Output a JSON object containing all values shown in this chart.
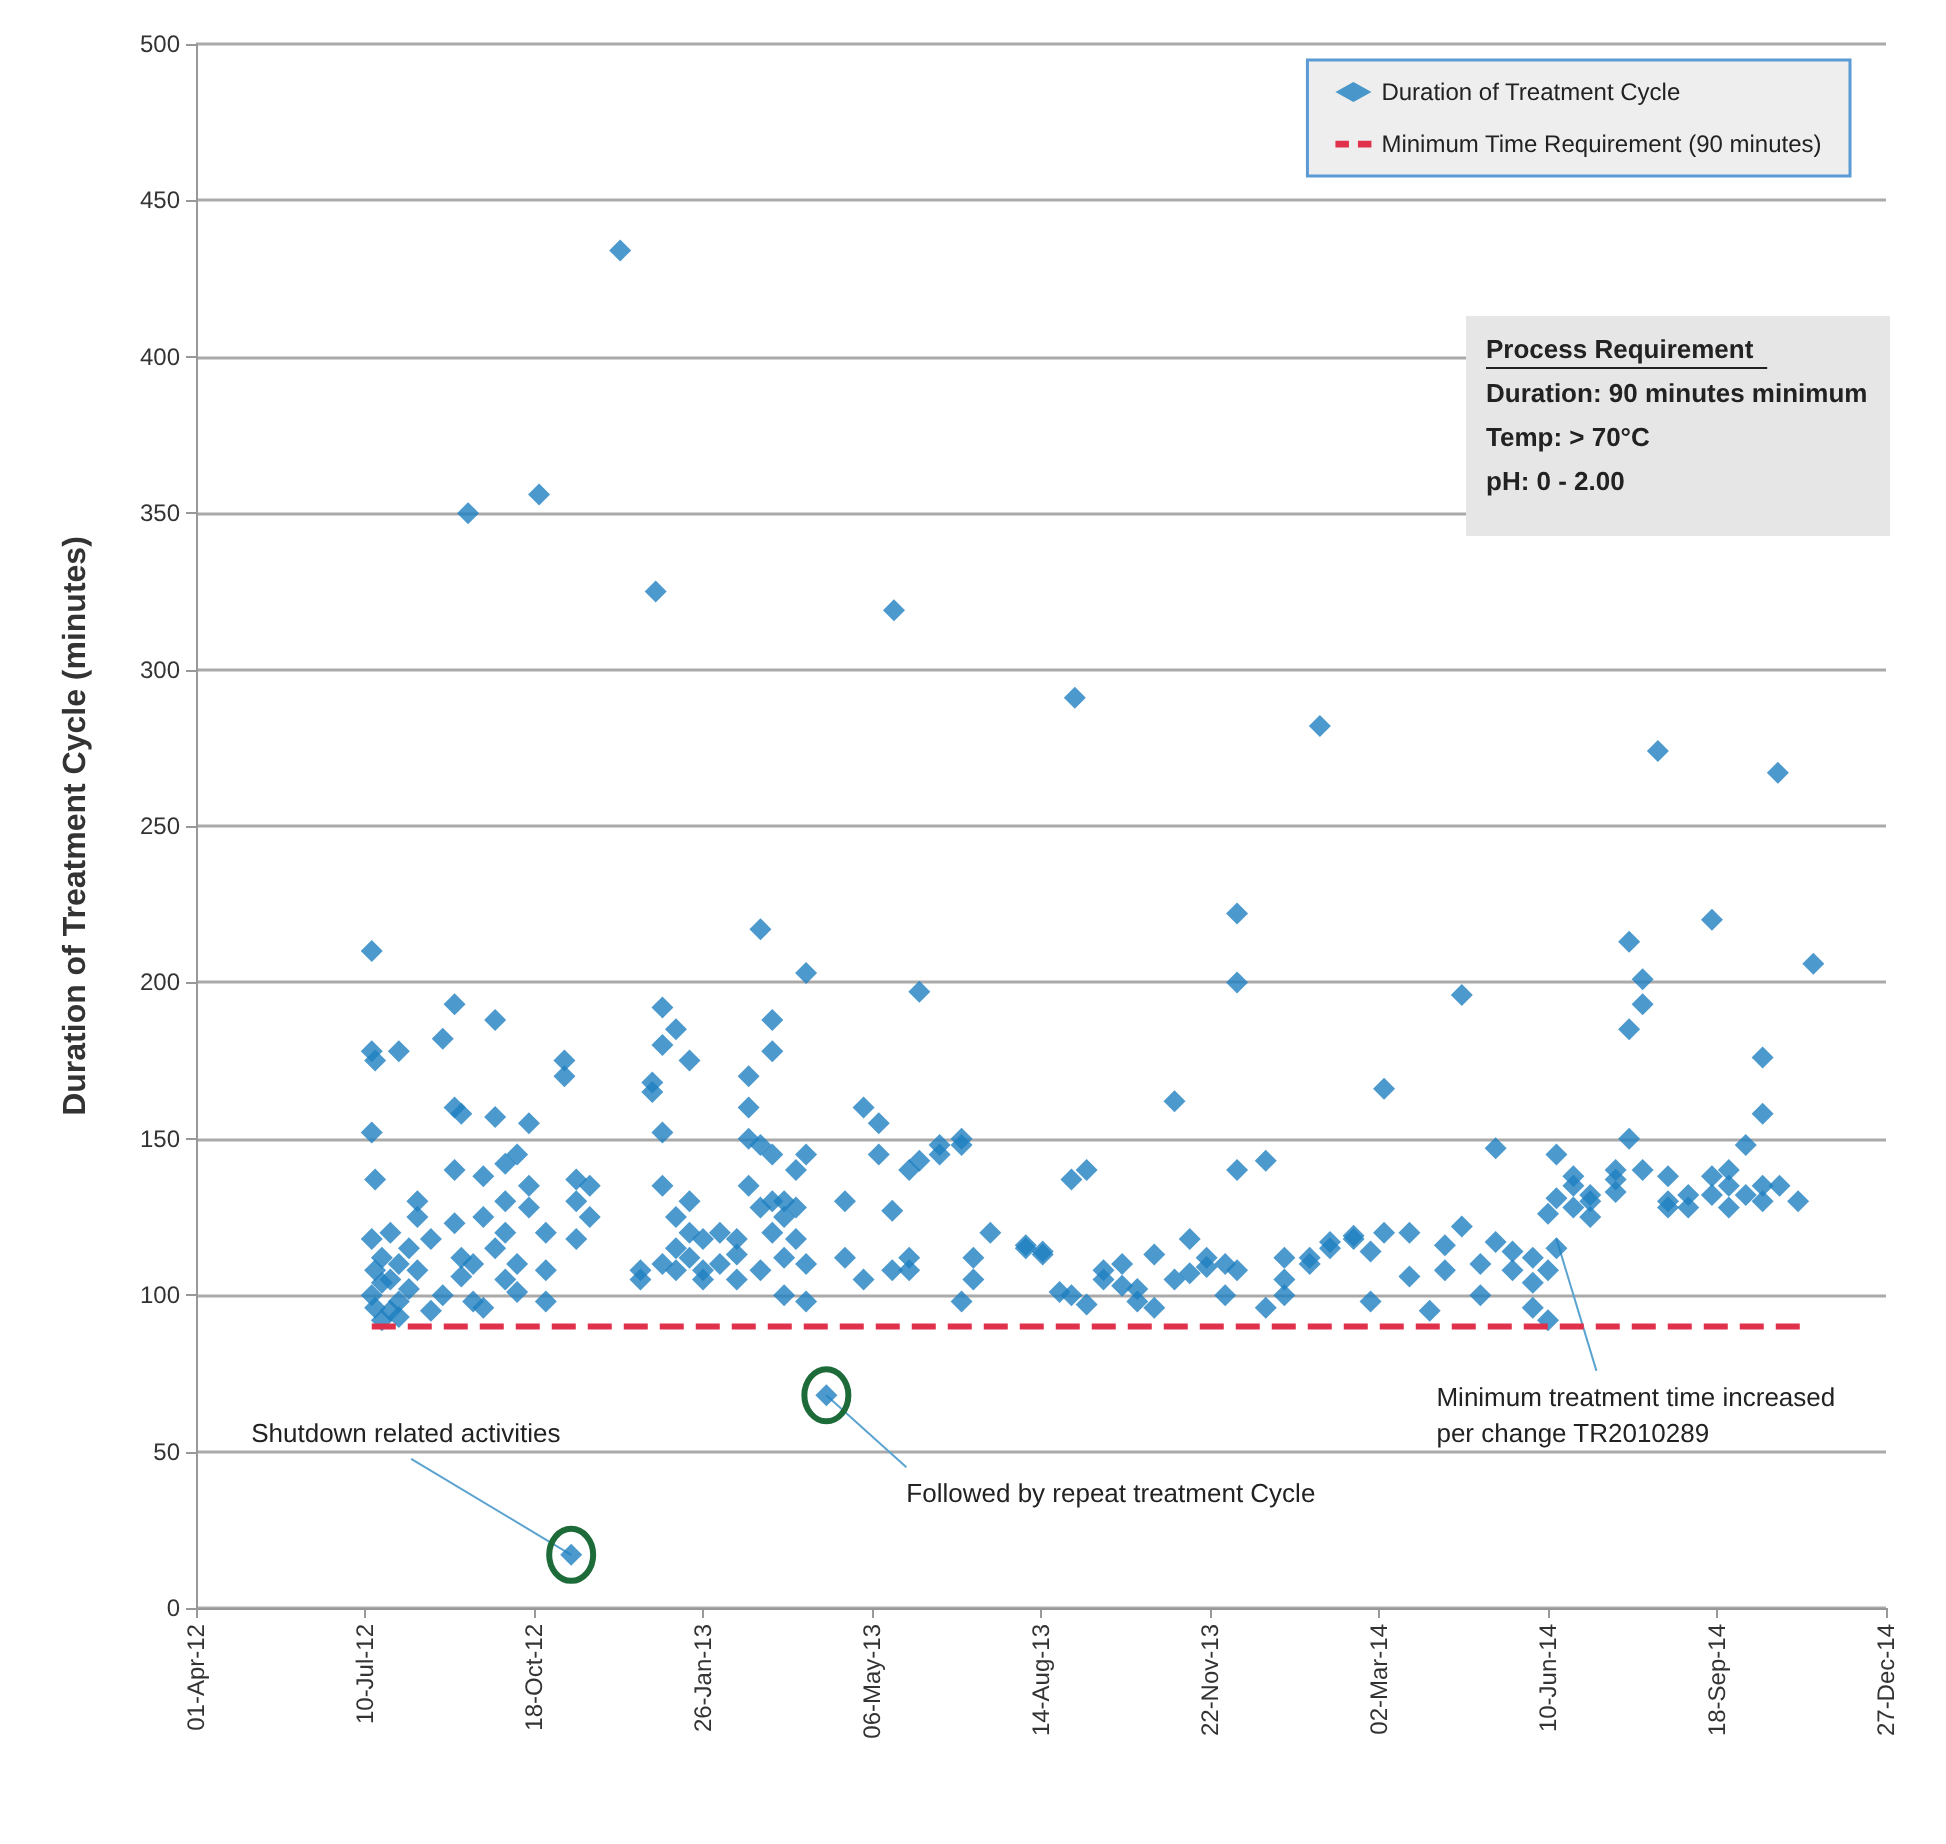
{
  "chart_data": {
    "type": "scatter",
    "ylabel": "Duration of Treatment Cycle (minutes)",
    "xlim": [
      "2012-04-01",
      "2014-12-27"
    ],
    "xticks": [
      {
        "value": "2012-04-01",
        "label": "01-Apr-12"
      },
      {
        "value": "2012-07-10",
        "label": "10-Jul-12"
      },
      {
        "value": "2012-10-18",
        "label": "18-Oct-12"
      },
      {
        "value": "2013-01-26",
        "label": "26-Jan-13"
      },
      {
        "value": "2013-05-06",
        "label": "06-May-13"
      },
      {
        "value": "2013-08-14",
        "label": "14-Aug-13"
      },
      {
        "value": "2013-11-22",
        "label": "22-Nov-13"
      },
      {
        "value": "2014-03-02",
        "label": "02-Mar-14"
      },
      {
        "value": "2014-06-10",
        "label": "10-Jun-14"
      },
      {
        "value": "2014-09-18",
        "label": "18-Sep-14"
      },
      {
        "value": "2014-12-27",
        "label": "27-Dec-14"
      }
    ],
    "ylim": [
      0,
      500
    ],
    "yticks": [
      0,
      50,
      100,
      150,
      200,
      250,
      300,
      350,
      400,
      450,
      500
    ],
    "grid": "y",
    "legend": "top right",
    "series": [
      {
        "name": "Duration of Treatment Cycle",
        "marker": "diamond",
        "color": "#1f7fc0",
        "x": [
          "2012-07-14",
          "2012-07-14",
          "2012-07-14",
          "2012-07-14",
          "2012-07-14",
          "2012-07-16",
          "2012-07-16",
          "2012-07-16",
          "2012-07-16",
          "2012-07-20",
          "2012-07-20",
          "2012-07-20",
          "2012-07-25",
          "2012-07-25",
          "2012-07-25",
          "2012-07-30",
          "2012-07-30",
          "2012-07-30",
          "2012-07-30",
          "2012-08-05",
          "2012-08-05",
          "2012-08-10",
          "2012-08-10",
          "2012-08-10",
          "2012-08-18",
          "2012-08-18",
          "2012-08-25",
          "2012-08-25",
          "2012-09-01",
          "2012-09-01",
          "2012-09-01",
          "2012-09-01",
          "2012-09-05",
          "2012-09-05",
          "2012-09-05",
          "2012-09-09",
          "2012-09-12",
          "2012-09-12",
          "2012-09-18",
          "2012-09-18",
          "2012-09-18",
          "2012-09-25",
          "2012-09-25",
          "2012-09-25",
          "2012-10-01",
          "2012-10-01",
          "2012-10-01",
          "2012-10-01",
          "2012-10-08",
          "2012-10-08",
          "2012-10-08",
          "2012-10-15",
          "2012-10-15",
          "2012-10-15",
          "2012-10-21",
          "2012-10-25",
          "2012-10-25",
          "2012-10-25",
          "2012-11-05",
          "2012-11-05",
          "2012-11-09",
          "2012-11-12",
          "2012-11-12",
          "2012-11-12",
          "2012-11-20",
          "2012-11-20",
          "2012-12-08",
          "2012-12-20",
          "2012-12-20",
          "2012-12-27",
          "2012-12-27",
          "2012-12-29",
          "2013-01-02",
          "2013-01-02",
          "2013-01-02",
          "2013-01-02",
          "2013-01-02",
          "2013-01-10",
          "2013-01-10",
          "2013-01-10",
          "2013-01-10",
          "2013-01-18",
          "2013-01-18",
          "2013-01-18",
          "2013-01-18",
          "2013-01-26",
          "2013-01-26",
          "2013-01-26",
          "2013-02-05",
          "2013-02-05",
          "2013-02-15",
          "2013-02-15",
          "2013-02-15",
          "2013-02-22",
          "2013-02-22",
          "2013-02-22",
          "2013-02-22",
          "2013-03-01",
          "2013-03-01",
          "2013-03-01",
          "2013-03-01",
          "2013-03-08",
          "2013-03-08",
          "2013-03-08",
          "2013-03-08",
          "2013-03-08",
          "2013-03-15",
          "2013-03-15",
          "2013-03-15",
          "2013-03-15",
          "2013-03-22",
          "2013-03-22",
          "2013-03-22",
          "2013-03-28",
          "2013-03-28",
          "2013-03-28",
          "2013-03-28",
          "2013-04-09",
          "2013-04-20",
          "2013-04-20",
          "2013-05-01",
          "2013-05-01",
          "2013-05-10",
          "2013-05-10",
          "2013-05-18",
          "2013-05-18",
          "2013-05-19",
          "2013-05-28",
          "2013-05-28",
          "2013-05-28",
          "2013-06-03",
          "2013-06-03",
          "2013-06-15",
          "2013-06-15",
          "2013-06-28",
          "2013-06-28",
          "2013-06-28",
          "2013-07-05",
          "2013-07-05",
          "2013-07-15",
          "2013-08-05",
          "2013-08-05",
          "2013-08-15",
          "2013-08-15",
          "2013-08-25",
          "2013-09-01",
          "2013-09-01",
          "2013-09-03",
          "2013-09-10",
          "2013-09-10",
          "2013-09-20",
          "2013-09-20",
          "2013-10-01",
          "2013-10-01",
          "2013-10-10",
          "2013-10-10",
          "2013-10-20",
          "2013-10-20",
          "2013-11-01",
          "2013-11-01",
          "2013-11-10",
          "2013-11-10",
          "2013-11-20",
          "2013-11-20",
          "2013-12-01",
          "2013-12-01",
          "2013-12-08",
          "2013-12-08",
          "2013-12-08",
          "2013-12-08",
          "2013-12-25",
          "2013-12-25",
          "2014-01-05",
          "2014-01-05",
          "2014-01-05",
          "2014-01-20",
          "2014-01-20",
          "2014-01-26",
          "2014-02-01",
          "2014-02-01",
          "2014-02-15",
          "2014-02-15",
          "2014-02-25",
          "2014-02-25",
          "2014-03-05",
          "2014-03-05",
          "2014-03-20",
          "2014-03-20",
          "2014-04-01",
          "2014-04-10",
          "2014-04-10",
          "2014-04-20",
          "2014-04-20",
          "2014-05-01",
          "2014-05-01",
          "2014-05-10",
          "2014-05-10",
          "2014-05-20",
          "2014-05-20",
          "2014-06-01",
          "2014-06-01",
          "2014-06-01",
          "2014-06-10",
          "2014-06-10",
          "2014-06-10",
          "2014-06-15",
          "2014-06-15",
          "2014-06-15",
          "2014-06-25",
          "2014-06-25",
          "2014-06-25",
          "2014-07-05",
          "2014-07-05",
          "2014-07-05",
          "2014-07-20",
          "2014-07-20",
          "2014-07-20",
          "2014-07-28",
          "2014-07-28",
          "2014-07-28",
          "2014-08-05",
          "2014-08-05",
          "2014-08-05",
          "2014-08-14",
          "2014-08-20",
          "2014-08-20",
          "2014-08-20",
          "2014-09-01",
          "2014-09-01",
          "2014-09-15",
          "2014-09-15",
          "2014-09-15",
          "2014-09-25",
          "2014-09-25",
          "2014-09-25",
          "2014-10-05",
          "2014-10-05",
          "2014-10-15",
          "2014-10-15",
          "2014-10-15",
          "2014-10-15",
          "2014-10-24",
          "2014-10-25",
          "2014-11-05",
          "2014-11-14"
        ],
        "values": [
          210,
          178,
          152,
          118,
          100,
          175,
          137,
          108,
          96,
          112,
          104,
          92,
          105,
          95,
          120,
          178,
          110,
          98,
          93,
          115,
          102,
          130,
          125,
          108,
          95,
          118,
          100,
          182,
          193,
          160,
          123,
          140,
          158,
          112,
          106,
          350,
          110,
          98,
          138,
          125,
          96,
          188,
          157,
          115,
          142,
          130,
          120,
          105,
          145,
          110,
          101,
          155,
          135,
          128,
          356,
          98,
          120,
          108,
          175,
          170,
          17,
          137,
          130,
          118,
          135,
          125,
          434,
          108,
          105,
          165,
          168,
          325,
          192,
          180,
          152,
          135,
          110,
          185,
          125,
          115,
          108,
          175,
          130,
          120,
          112,
          118,
          108,
          105,
          120,
          110,
          118,
          113,
          105,
          160,
          170,
          150,
          135,
          217,
          148,
          128,
          108,
          188,
          178,
          145,
          130,
          120,
          130,
          125,
          112,
          100,
          140,
          128,
          118,
          203,
          145,
          98,
          110,
          68,
          130,
          112,
          160,
          105,
          155,
          145,
          108,
          127,
          319,
          140,
          108,
          112,
          197,
          143,
          145,
          148,
          148,
          150,
          98,
          112,
          105,
          120,
          115,
          116,
          114,
          113,
          101,
          137,
          100,
          291,
          140,
          97,
          108,
          105,
          110,
          103,
          102,
          98,
          113,
          96,
          162,
          105,
          118,
          107,
          112,
          109,
          110,
          100,
          222,
          200,
          140,
          108,
          143,
          96,
          112,
          105,
          100,
          112,
          110,
          282,
          115,
          117,
          118,
          119,
          114,
          98,
          166,
          120,
          120,
          106,
          95,
          116,
          108,
          196,
          122,
          110,
          100,
          147,
          117,
          108,
          114,
          104,
          112,
          96,
          92,
          126,
          108,
          145,
          131,
          115,
          138,
          135,
          128,
          130,
          132,
          125,
          137,
          140,
          133,
          213,
          185,
          150,
          201,
          193,
          140,
          274,
          138,
          130,
          128,
          132,
          128,
          220,
          138,
          132,
          140,
          135,
          128,
          148,
          132,
          176,
          158,
          135,
          130,
          267,
          135,
          130,
          206
        ]
      },
      {
        "name": "Minimum Time Requirement (90 minutes)",
        "type": "line",
        "color": "#e0304a",
        "line_style": "dashed",
        "x": [
          "2012-07-14",
          "2014-11-10"
        ],
        "values": [
          90,
          90
        ]
      }
    ],
    "annotations": [
      "Process Requirement",
      "Duration: 90 minutes minimum",
      "Temp: > 70°C",
      "pH: 0 - 2.00",
      {
        "text": "Shutdown related activities",
        "x": "2012-11-09",
        "y": 17
      },
      {
        "text": "Followed by repeat treatment Cycle",
        "x": "2013-04-09",
        "y": 68
      },
      {
        "text": "Minimum treatment time increased\nper change TR2010289",
        "x": "2014-06-15",
        "y": 118
      }
    ]
  }
}
